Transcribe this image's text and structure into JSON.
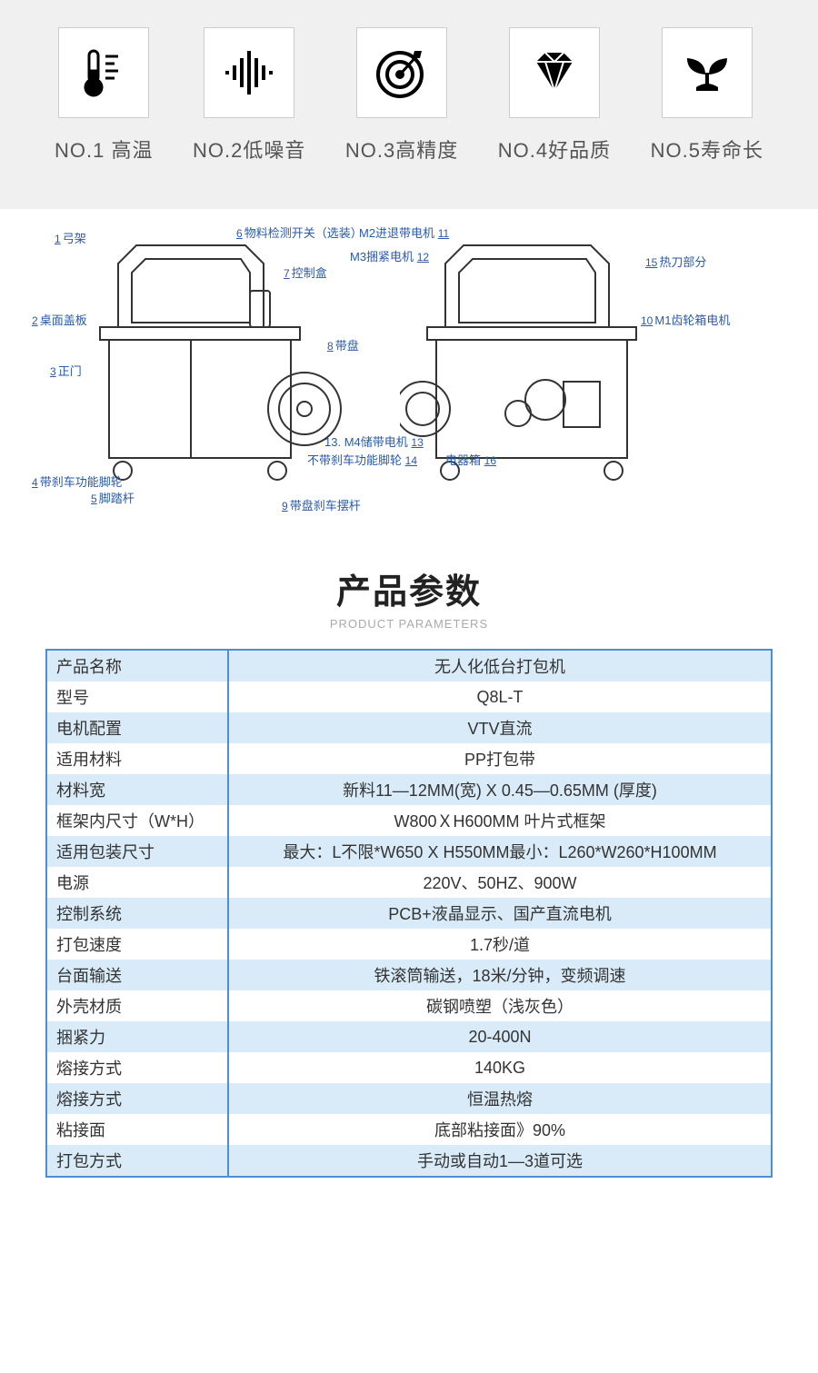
{
  "features": {
    "items": [
      {
        "label": "NO.1   高温"
      },
      {
        "label": "NO.2低噪音"
      },
      {
        "label": "NO.3高精度"
      },
      {
        "label": "NO.4好品质"
      },
      {
        "label": "NO.5寿命长"
      }
    ],
    "icon_names": [
      "thermometer-icon",
      "soundwave-icon",
      "target-icon",
      "diamond-icon",
      "sprout-icon"
    ],
    "bg_color": "#f0f0f0",
    "box_border": "#cccccc",
    "label_color": "#555555"
  },
  "diagram": {
    "labels": {
      "l1": {
        "num": "1",
        "text": "弓架"
      },
      "l2": {
        "num": "2",
        "text": "桌面盖板"
      },
      "l3": {
        "num": "3",
        "text": "正门"
      },
      "l4": {
        "num": "4",
        "text": "带刹车功能脚轮"
      },
      "l5": {
        "num": "5",
        "text": "脚踏杆"
      },
      "l6": {
        "num": "6",
        "text": "物料检测开关（选装）"
      },
      "l7": {
        "num": "7",
        "text": "控制盒"
      },
      "l8": {
        "num": "8",
        "text": "带盘"
      },
      "l9": {
        "num": "9",
        "text": "带盘刹车摆杆"
      },
      "l10": {
        "num": "10",
        "text": "M1齿轮箱电机"
      },
      "l11": {
        "num": "11",
        "text": "M2进退带电机"
      },
      "l12": {
        "num": "12",
        "text": "M3捆紧电机"
      },
      "l13": {
        "num": "13.",
        "text": "M4储带电机"
      },
      "l13b": {
        "num": "13",
        "text": ""
      },
      "l14": {
        "num": "14",
        "text": "不带刹车功能脚轮"
      },
      "l15": {
        "num": "15",
        "text": "热刀部分"
      },
      "l16": {
        "num": "16",
        "text": "电器箱"
      }
    },
    "label_color": "#2a5aa8"
  },
  "params_header": {
    "title_cn": "产品参数",
    "title_en": "PRODUCT PARAMETERS"
  },
  "params_table": {
    "border_color": "#4a90d9",
    "alt_row_color": "#d9ebf8",
    "rows": [
      {
        "label": "产品名称",
        "value": "无人化低台打包机",
        "alt": true
      },
      {
        "label": "型号",
        "value": "Q8L-T",
        "alt": false
      },
      {
        "label": "电机配置",
        "value": "VTV直流",
        "alt": true
      },
      {
        "label": "适用材料",
        "value": "PP打包带",
        "alt": false
      },
      {
        "label": "材料宽",
        "value": "新料11—12MM(宽) X 0.45—0.65MM (厚度)",
        "alt": true
      },
      {
        "label": "框架内尺寸（W*H）",
        "value": "W800ＸH600MM 叶片式框架",
        "alt": false
      },
      {
        "label": "适用包装尺寸",
        "value": "最大：L不限*W650 X H550MM最小：L260*W260*H100MM",
        "alt": true
      },
      {
        "label": "电源",
        "value": "220V、50HZ、900W",
        "alt": false
      },
      {
        "label": "控制系统",
        "value": "PCB+液晶显示、国产直流电机",
        "alt": true
      },
      {
        "label": "打包速度",
        "value": "1.7秒/道",
        "alt": false
      },
      {
        "label": "台面输送",
        "value": "铁滚筒输送，18米/分钟，变频调速",
        "alt": true
      },
      {
        "label": "外壳材质",
        "value": "碳钢喷塑（浅灰色）",
        "alt": false
      },
      {
        "label": "捆紧力",
        "value": "20-400N",
        "alt": true
      },
      {
        "label": "熔接方式",
        "value": "140KG",
        "alt": false
      },
      {
        "label": "熔接方式",
        "value": "恒温热熔",
        "alt": true
      },
      {
        "label": "粘接面",
        "value": "底部粘接面》90%",
        "alt": false
      },
      {
        "label": "打包方式",
        "value": "手动或自动1—3道可选",
        "alt": true
      }
    ]
  }
}
